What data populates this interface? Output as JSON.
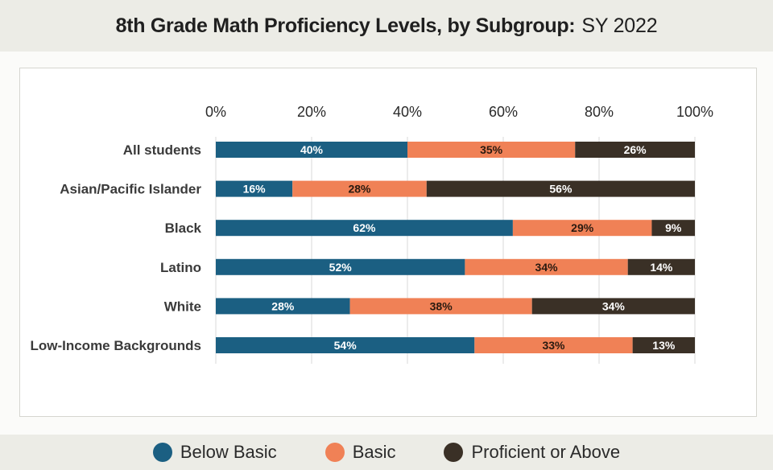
{
  "header": {
    "title_bold": "8th Grade Math Proficiency Levels, by Subgroup:",
    "title_regular": "SY 2022"
  },
  "colors": {
    "below_basic": "#1b5f82",
    "basic": "#f08156",
    "proficient": "#3a3026"
  },
  "legend": [
    {
      "label": "Below Basic",
      "color": "#1b5f82"
    },
    {
      "label": "Basic",
      "color": "#f08156"
    },
    {
      "label": "Proficient or Above",
      "color": "#3a3026"
    }
  ],
  "chart_data": {
    "type": "bar",
    "orientation": "horizontal",
    "stacked": true,
    "title": "8th Grade Math Proficiency Levels, by Subgroup: SY 2022",
    "categories": [
      "All students",
      "Asian/Pacific Islander",
      "Black",
      "Latino",
      "White",
      "Low-Income Backgrounds"
    ],
    "xlim": [
      0,
      100
    ],
    "x_ticks": [
      0,
      20,
      40,
      60,
      80,
      100
    ],
    "x_tick_labels": [
      "0%",
      "20%",
      "40%",
      "60%",
      "80%",
      "100%"
    ],
    "grid": true,
    "legend_position": "bottom",
    "series": [
      {
        "name": "Below Basic",
        "values": [
          40,
          16,
          62,
          52,
          28,
          54
        ],
        "labels": [
          "40%",
          "16%",
          "62%",
          "52%",
          "28%",
          "54%"
        ]
      },
      {
        "name": "Basic",
        "values": [
          35,
          28,
          29,
          34,
          38,
          33
        ],
        "labels": [
          "35%",
          "28%",
          "29%",
          "34%",
          "38%",
          "33%"
        ]
      },
      {
        "name": "Proficient or Above",
        "values": [
          26,
          56,
          9,
          14,
          34,
          13
        ],
        "labels": [
          "26%",
          "56%",
          "9%",
          "14%",
          "34%",
          "13%"
        ]
      }
    ]
  }
}
